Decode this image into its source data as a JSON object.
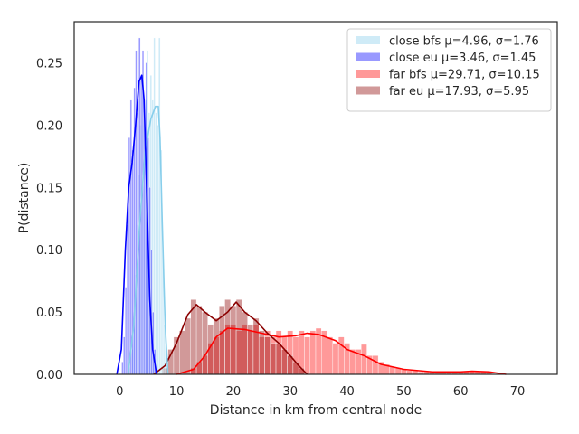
{
  "chart_data": {
    "type": "histogram-kde",
    "title": "",
    "xlabel": "Distance in km from central node",
    "ylabel": "P(distance)",
    "xlim": [
      -8,
      77
    ],
    "ylim": [
      0,
      0.283
    ],
    "x_ticks": [
      0,
      10,
      20,
      30,
      40,
      50,
      60,
      70
    ],
    "y_ticks": [
      0.0,
      0.05,
      0.1,
      0.15,
      0.2,
      0.25
    ],
    "y_tick_labels": [
      "0.00",
      "0.05",
      "0.10",
      "0.15",
      "0.20",
      "0.25"
    ],
    "grid": false,
    "legend_position": "top-right",
    "series": [
      {
        "name": "close bfs μ=4.96, σ=1.76",
        "fill_color": "#87ceeb",
        "fill_opacity": 0.4,
        "line_color": "#87ceeb",
        "bins": [
          [
            2.2,
            0.02
          ],
          [
            2.5,
            0.05
          ],
          [
            2.8,
            0.08
          ],
          [
            3.1,
            0.12
          ],
          [
            3.4,
            0.16
          ],
          [
            3.7,
            0.2
          ],
          [
            4.0,
            0.24
          ],
          [
            4.3,
            0.2
          ],
          [
            4.6,
            0.22
          ],
          [
            4.9,
            0.26
          ],
          [
            5.2,
            0.21
          ],
          [
            5.5,
            0.24
          ],
          [
            5.8,
            0.22
          ],
          [
            6.1,
            0.27
          ],
          [
            6.4,
            0.21
          ],
          [
            6.7,
            0.2
          ],
          [
            7.0,
            0.27
          ],
          [
            7.3,
            0.18
          ],
          [
            7.6,
            0.1
          ],
          [
            7.9,
            0.04
          ]
        ],
        "kde": [
          [
            1.5,
            0.0
          ],
          [
            2.5,
            0.04
          ],
          [
            3.5,
            0.12
          ],
          [
            4.5,
            0.18
          ],
          [
            5.5,
            0.205
          ],
          [
            6.3,
            0.215
          ],
          [
            6.8,
            0.215
          ],
          [
            7.1,
            0.19
          ],
          [
            7.5,
            0.12
          ],
          [
            8.0,
            0.04
          ],
          [
            8.5,
            0.0
          ]
        ]
      },
      {
        "name": "close eu μ=3.46, σ=1.45",
        "fill_color": "#0000ff",
        "fill_opacity": 0.4,
        "line_color": "#0000ff",
        "bins": [
          [
            0.5,
            0.01
          ],
          [
            0.8,
            0.03
          ],
          [
            1.1,
            0.07
          ],
          [
            1.4,
            0.12
          ],
          [
            1.7,
            0.19
          ],
          [
            2.0,
            0.22
          ],
          [
            2.3,
            0.18
          ],
          [
            2.6,
            0.23
          ],
          [
            2.9,
            0.26
          ],
          [
            3.2,
            0.21
          ],
          [
            3.5,
            0.27
          ],
          [
            3.8,
            0.24
          ],
          [
            4.1,
            0.26
          ],
          [
            4.4,
            0.21
          ],
          [
            4.7,
            0.25
          ],
          [
            5.0,
            0.19
          ],
          [
            5.3,
            0.15
          ],
          [
            5.6,
            0.1
          ],
          [
            5.9,
            0.05
          ],
          [
            6.2,
            0.02
          ]
        ],
        "kde": [
          [
            -0.5,
            0.0
          ],
          [
            0.3,
            0.02
          ],
          [
            1.0,
            0.1
          ],
          [
            1.6,
            0.15
          ],
          [
            2.2,
            0.17
          ],
          [
            2.8,
            0.2
          ],
          [
            3.4,
            0.235
          ],
          [
            3.9,
            0.24
          ],
          [
            4.3,
            0.22
          ],
          [
            4.8,
            0.14
          ],
          [
            5.3,
            0.06
          ],
          [
            5.8,
            0.02
          ],
          [
            6.5,
            0.0
          ]
        ]
      },
      {
        "name": "far bfs μ=29.71, σ=10.15",
        "fill_color": "#ff0000",
        "fill_opacity": 0.4,
        "line_color": "#ff0000",
        "bins": [
          [
            13,
            0.005
          ],
          [
            14,
            0.01
          ],
          [
            15,
            0.015
          ],
          [
            16,
            0.025
          ],
          [
            17,
            0.03
          ],
          [
            18,
            0.035
          ],
          [
            19,
            0.04
          ],
          [
            20,
            0.04
          ],
          [
            21,
            0.035
          ],
          [
            22,
            0.04
          ],
          [
            23,
            0.035
          ],
          [
            24,
            0.04
          ],
          [
            25,
            0.03
          ],
          [
            26,
            0.035
          ],
          [
            27,
            0.03
          ],
          [
            28,
            0.035
          ],
          [
            29,
            0.03
          ],
          [
            30,
            0.035
          ],
          [
            31,
            0.03
          ],
          [
            32,
            0.035
          ],
          [
            33,
            0.03
          ],
          [
            34,
            0.035
          ],
          [
            35,
            0.037
          ],
          [
            36,
            0.035
          ],
          [
            37,
            0.03
          ],
          [
            38,
            0.025
          ],
          [
            39,
            0.03
          ],
          [
            40,
            0.025
          ],
          [
            41,
            0.02
          ],
          [
            42,
            0.02
          ],
          [
            43,
            0.024
          ],
          [
            44,
            0.015
          ],
          [
            45,
            0.015
          ],
          [
            46,
            0.01
          ],
          [
            47,
            0.008
          ],
          [
            48,
            0.006
          ],
          [
            49,
            0.005
          ],
          [
            50,
            0.004
          ],
          [
            51,
            0.003
          ],
          [
            52,
            0.003
          ],
          [
            53,
            0.002
          ],
          [
            54,
            0.002
          ],
          [
            55,
            0.002
          ],
          [
            56,
            0.002
          ],
          [
            57,
            0.002
          ],
          [
            58,
            0.002
          ],
          [
            59,
            0.002
          ],
          [
            60,
            0.002
          ],
          [
            61,
            0.002
          ],
          [
            62,
            0.002
          ],
          [
            63,
            0.002
          ],
          [
            64,
            0.002
          ],
          [
            65,
            0.001
          ]
        ],
        "kde": [
          [
            10,
            0.0
          ],
          [
            13,
            0.004
          ],
          [
            15,
            0.015
          ],
          [
            17,
            0.03
          ],
          [
            19,
            0.037
          ],
          [
            22,
            0.036
          ],
          [
            25,
            0.033
          ],
          [
            28,
            0.03
          ],
          [
            31,
            0.031
          ],
          [
            33,
            0.033
          ],
          [
            35,
            0.032
          ],
          [
            38,
            0.027
          ],
          [
            40,
            0.02
          ],
          [
            43,
            0.015
          ],
          [
            46,
            0.008
          ],
          [
            50,
            0.004
          ],
          [
            55,
            0.002
          ],
          [
            60,
            0.002
          ],
          [
            62,
            0.0025
          ],
          [
            65,
            0.002
          ],
          [
            68,
            0.0
          ]
        ]
      },
      {
        "name": "far eu μ=17.93, σ=5.95",
        "fill_color": "#8b0000",
        "fill_opacity": 0.4,
        "line_color": "#8b0000",
        "bins": [
          [
            8,
            0.005
          ],
          [
            9,
            0.02
          ],
          [
            10,
            0.03
          ],
          [
            11,
            0.035
          ],
          [
            12,
            0.045
          ],
          [
            13,
            0.06
          ],
          [
            14,
            0.055
          ],
          [
            15,
            0.05
          ],
          [
            16,
            0.04
          ],
          [
            17,
            0.045
          ],
          [
            18,
            0.055
          ],
          [
            19,
            0.06
          ],
          [
            20,
            0.055
          ],
          [
            21,
            0.06
          ],
          [
            22,
            0.05
          ],
          [
            23,
            0.04
          ],
          [
            24,
            0.045
          ],
          [
            25,
            0.035
          ],
          [
            26,
            0.03
          ],
          [
            27,
            0.025
          ],
          [
            28,
            0.025
          ],
          [
            29,
            0.02
          ],
          [
            30,
            0.015
          ],
          [
            31,
            0.01
          ],
          [
            32,
            0.005
          ]
        ],
        "kde": [
          [
            6,
            0.0
          ],
          [
            8,
            0.007
          ],
          [
            10,
            0.025
          ],
          [
            12,
            0.048
          ],
          [
            13.5,
            0.056
          ],
          [
            15,
            0.05
          ],
          [
            17,
            0.043
          ],
          [
            19,
            0.05
          ],
          [
            20.5,
            0.058
          ],
          [
            22,
            0.05
          ],
          [
            24,
            0.043
          ],
          [
            26,
            0.033
          ],
          [
            28,
            0.025
          ],
          [
            30,
            0.015
          ],
          [
            31.5,
            0.007
          ],
          [
            33,
            0.0
          ]
        ]
      }
    ]
  }
}
